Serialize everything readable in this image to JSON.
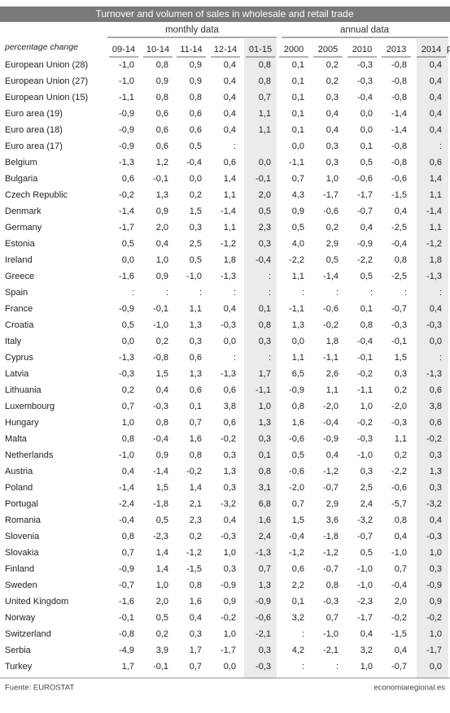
{
  "header": {
    "title": "Turnover and volumen of sales in wholesale and retail trade",
    "groups": [
      "monthly data",
      "annual data"
    ],
    "row_label": "percentage change",
    "columns": [
      "09-14",
      "10-14",
      "11-14",
      "12-14",
      "01-15",
      "2000",
      "2005",
      "2010",
      "2013",
      "2014"
    ],
    "cut_note": "p"
  },
  "table": {
    "rows": [
      [
        "European Union (28)",
        "-1,0",
        "0,8",
        "0,9",
        "0,4",
        "0,8",
        "0,1",
        "0,2",
        "-0,3",
        "-0,8",
        "0,4"
      ],
      [
        "European Union (27)",
        "-1,0",
        "0,9",
        "0,9",
        "0,4",
        "0,8",
        "0,1",
        "0,2",
        "-0,3",
        "-0,8",
        "0,4"
      ],
      [
        "European Union (15)",
        "-1,1",
        "0,8",
        "0,8",
        "0,4",
        "0,7",
        "0,1",
        "0,3",
        "-0,4",
        "-0,8",
        "0,4"
      ],
      [
        "Euro area (19)",
        "-0,9",
        "0,6",
        "0,6",
        "0,4",
        "1,1",
        "0,1",
        "0,4",
        "0,0",
        "-1,4",
        "0,4"
      ],
      [
        "Euro area (18)",
        "-0,9",
        "0,6",
        "0,6",
        "0,4",
        "1,1",
        "0,1",
        "0,4",
        "0,0",
        "-1,4",
        "0,4"
      ],
      [
        "Euro area (17)",
        "-0,9",
        "0,6",
        "0,5",
        ":",
        null,
        "0,0",
        "0,3",
        "0,1",
        "-0,8",
        ":"
      ],
      [
        "Belgium",
        "-1,3",
        "1,2",
        "-0,4",
        "0,6",
        "0,0",
        "-1,1",
        "0,3",
        "0,5",
        "-0,8",
        "0,6"
      ],
      [
        "Bulgaria",
        "0,6",
        "-0,1",
        "0,0",
        "1,4",
        "-0,1",
        "0,7",
        "1,0",
        "-0,6",
        "-0,6",
        "1,4"
      ],
      [
        "Czech Republic",
        "-0,2",
        "1,3",
        "0,2",
        "1,1",
        "2,0",
        "4,3",
        "-1,7",
        "-1,7",
        "-1,5",
        "1,1"
      ],
      [
        "Denmark",
        "-1,4",
        "0,9",
        "1,5",
        "-1,4",
        "0,5",
        "0,9",
        "-0,6",
        "-0,7",
        "0,4",
        "-1,4"
      ],
      [
        "Germany",
        "-1,7",
        "2,0",
        "0,3",
        "1,1",
        "2,3",
        "0,5",
        "0,2",
        "0,4",
        "-2,5",
        "1,1"
      ],
      [
        "Estonia",
        "0,5",
        "0,4",
        "2,5",
        "-1,2",
        "0,3",
        "4,0",
        "2,9",
        "-0,9",
        "-0,4",
        "-1,2"
      ],
      [
        "Ireland",
        "0,0",
        "1,0",
        "0,5",
        "1,8",
        "-0,4",
        "-2,2",
        "0,5",
        "-2,2",
        "0,8",
        "1,8"
      ],
      [
        "Greece",
        "-1,6",
        "0,9",
        "-1,0",
        "-1,3",
        ":",
        "1,1",
        "-1,4",
        "0,5",
        "-2,5",
        "-1,3"
      ],
      [
        "Spain",
        ":",
        ":",
        ":",
        ":",
        ":",
        ":",
        ":",
        ":",
        ":",
        ":"
      ],
      [
        "France",
        "-0,9",
        "-0,1",
        "1,1",
        "0,4",
        "0,1",
        "-1,1",
        "-0,6",
        "0,1",
        "-0,7",
        "0,4"
      ],
      [
        "Croatia",
        "0,5",
        "-1,0",
        "1,3",
        "-0,3",
        "0,8",
        "1,3",
        "-0,2",
        "0,8",
        "-0,3",
        "-0,3"
      ],
      [
        "Italy",
        "0,0",
        "0,2",
        "0,3",
        "0,0",
        "0,3",
        "0,0",
        "1,8",
        "-0,4",
        "-0,1",
        "0,0"
      ],
      [
        "Cyprus",
        "-1,3",
        "-0,8",
        "0,6",
        ":",
        ":",
        "1,1",
        "-1,1",
        "-0,1",
        "1,5",
        ":"
      ],
      [
        "Latvia",
        "-0,3",
        "1,5",
        "1,3",
        "-1,3",
        "1,7",
        "6,5",
        "2,6",
        "-0,2",
        "0,3",
        "-1,3"
      ],
      [
        "Lithuania",
        "0,2",
        "0,4",
        "0,6",
        "0,6",
        "-1,1",
        "-0,9",
        "1,1",
        "-1,1",
        "0,2",
        "0,6"
      ],
      [
        "Luxembourg",
        "0,7",
        "-0,3",
        "0,1",
        "3,8",
        "1,0",
        "0,8",
        "-2,0",
        "1,0",
        "-2,0",
        "3,8"
      ],
      [
        "Hungary",
        "1,0",
        "0,8",
        "0,7",
        "0,6",
        "1,3",
        "1,6",
        "-0,4",
        "-0,2",
        "-0,3",
        "0,6"
      ],
      [
        "Malta",
        "0,8",
        "-0,4",
        "1,6",
        "-0,2",
        "0,3",
        "-0,6",
        "-0,9",
        "-0,3",
        "1,1",
        "-0,2"
      ],
      [
        "Netherlands",
        "-1,0",
        "0,9",
        "0,8",
        "0,3",
        "0,1",
        "0,5",
        "0,4",
        "-1,0",
        "0,2",
        "0,3"
      ],
      [
        "Austria",
        "0,4",
        "-1,4",
        "-0,2",
        "1,3",
        "0,8",
        "-0,6",
        "-1,2",
        "0,3",
        "-2,2",
        "1,3"
      ],
      [
        "Poland",
        "-1,4",
        "1,5",
        "1,4",
        "0,3",
        "3,1",
        "-2,0",
        "-0,7",
        "2,5",
        "-0,6",
        "0,3"
      ],
      [
        "Portugal",
        "-2,4",
        "-1,8",
        "2,1",
        "-3,2",
        "6,8",
        "0,7",
        "2,9",
        "2,4",
        "-5,7",
        "-3,2"
      ],
      [
        "Romania",
        "-0,4",
        "0,5",
        "2,3",
        "0,4",
        "1,6",
        "1,5",
        "3,6",
        "-3,2",
        "0,8",
        "0,4"
      ],
      [
        "Slovenia",
        "0,8",
        "-2,3",
        "0,2",
        "-0,3",
        "2,4",
        "-0,4",
        "-1,8",
        "-0,7",
        "0,4",
        "-0,3"
      ],
      [
        "Slovakia",
        "0,7",
        "1,4",
        "-1,2",
        "1,0",
        "-1,3",
        "-1,2",
        "-1,2",
        "0,5",
        "-1,0",
        "1,0"
      ],
      [
        "Finland",
        "-0,9",
        "1,4",
        "-1,5",
        "0,3",
        "0,7",
        "0,6",
        "-0,7",
        "-1,0",
        "0,7",
        "0,3"
      ],
      [
        "Sweden",
        "-0,7",
        "1,0",
        "0,8",
        "-0,9",
        "1,3",
        "2,2",
        "0,8",
        "-1,0",
        "-0,4",
        "-0,9"
      ],
      [
        "United Kingdom",
        "-1,6",
        "2,0",
        "1,6",
        "0,9",
        "-0,9",
        "0,1",
        "-0,3",
        "-2,3",
        "2,0",
        "0,9"
      ],
      [
        "Norway",
        "-0,1",
        "0,5",
        "0,4",
        "-0,2",
        "-0,6",
        "3,2",
        "0,7",
        "-1,7",
        "-0,2",
        "-0,2"
      ],
      [
        "Switzerland",
        "-0,8",
        "0,2",
        "0,3",
        "1,0",
        "-2,1",
        ":",
        "-1,0",
        "0,4",
        "-1,5",
        "1,0"
      ],
      [
        "Serbia",
        "-4,9",
        "3,9",
        "1,7",
        "-1,7",
        "0,3",
        "4,2",
        "-2,1",
        "3,2",
        "0,4",
        "-1,7"
      ],
      [
        "Turkey",
        "1,7",
        "-0,1",
        "0,7",
        "0,0",
        "-0,3",
        ":",
        ":",
        "1,0",
        "-0,7",
        "0,0"
      ]
    ]
  },
  "footer": {
    "source": "Fuente: EUROSTAT",
    "site": "economiaregional.es"
  }
}
